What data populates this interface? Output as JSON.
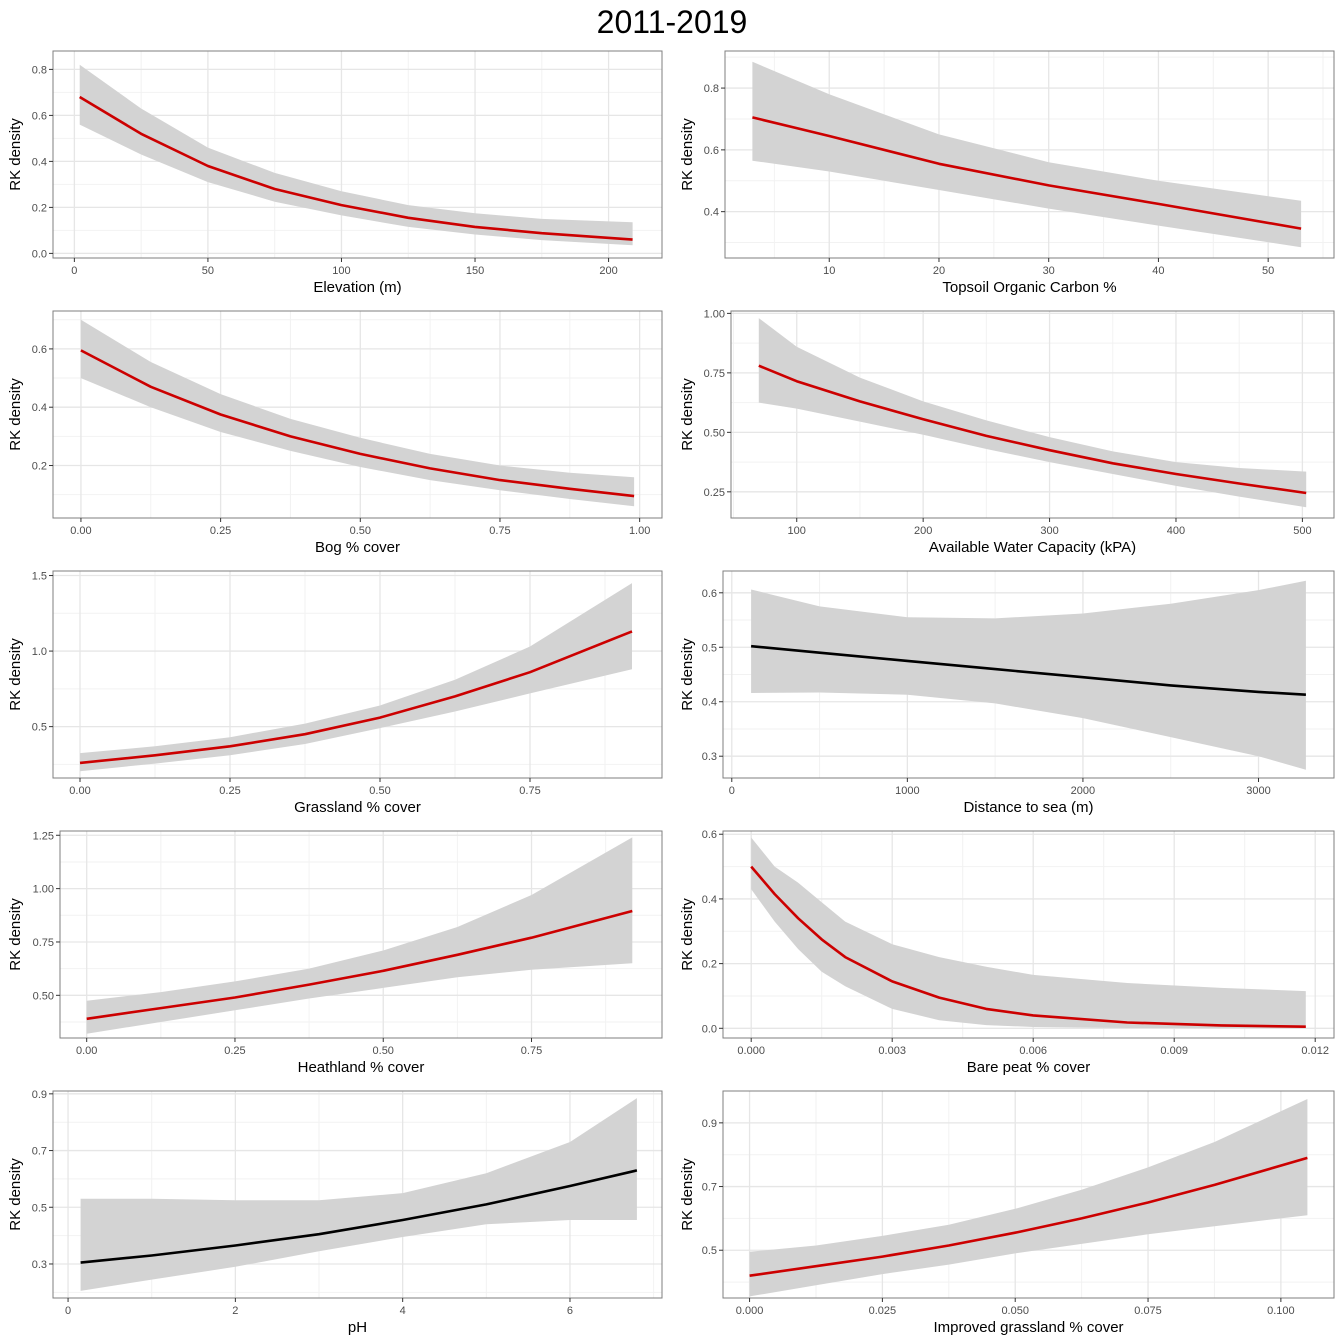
{
  "figure_title": "2011-2019",
  "colors": {
    "significant": "#cc0000",
    "non_significant": "#000000",
    "ribbon": "#d3d3d3",
    "grid_major": "#e6e6e6",
    "grid_minor": "#f2f2f2",
    "panel_border": "#7f7f7f"
  },
  "chart_data": [
    {
      "type": "line",
      "title": "",
      "xlabel": "Elevation (m)",
      "ylabel": "RK density",
      "xlim": [
        -8,
        220
      ],
      "ylim": [
        -0.02,
        0.88
      ],
      "xticks": [
        0,
        50,
        100,
        150,
        200
      ],
      "xtick_labels": [
        "0",
        "50",
        "100",
        "150",
        "200"
      ],
      "yticks": [
        0.0,
        0.2,
        0.4,
        0.6,
        0.8
      ],
      "ytick_labels": [
        "0.0",
        "0.2",
        "0.4",
        "0.6",
        "0.8"
      ],
      "line_color": "#cc0000",
      "x": [
        2,
        25,
        50,
        75,
        100,
        125,
        150,
        175,
        209
      ],
      "y": [
        0.68,
        0.52,
        0.38,
        0.28,
        0.21,
        0.155,
        0.115,
        0.088,
        0.06
      ],
      "lower": [
        0.56,
        0.43,
        0.31,
        0.225,
        0.165,
        0.115,
        0.082,
        0.058,
        0.035
      ],
      "upper": [
        0.82,
        0.63,
        0.46,
        0.35,
        0.27,
        0.21,
        0.175,
        0.15,
        0.135
      ]
    },
    {
      "type": "line",
      "title": "",
      "xlabel": "Topsoil Organic Carbon %",
      "ylabel": "RK density",
      "xlim": [
        0.5,
        56
      ],
      "ylim": [
        0.25,
        0.92
      ],
      "xticks": [
        10,
        20,
        30,
        40,
        50
      ],
      "xtick_labels": [
        "10",
        "20",
        "30",
        "40",
        "50"
      ],
      "yticks": [
        0.4,
        0.6,
        0.8
      ],
      "ytick_labels": [
        "0.4",
        "0.6",
        "0.8"
      ],
      "line_color": "#cc0000",
      "x": [
        3,
        10,
        20,
        30,
        40,
        53
      ],
      "y": [
        0.705,
        0.645,
        0.555,
        0.485,
        0.425,
        0.345
      ],
      "lower": [
        0.565,
        0.53,
        0.47,
        0.41,
        0.355,
        0.285
      ],
      "upper": [
        0.885,
        0.78,
        0.65,
        0.56,
        0.5,
        0.435
      ]
    },
    {
      "type": "line",
      "title": "",
      "xlabel": "Bog % cover",
      "ylabel": "RK density",
      "xlim": [
        -0.05,
        1.04
      ],
      "ylim": [
        0.02,
        0.73
      ],
      "xticks": [
        0.0,
        0.25,
        0.5,
        0.75,
        1.0
      ],
      "xtick_labels": [
        "0.00",
        "0.25",
        "0.50",
        "0.75",
        "1.00"
      ],
      "yticks": [
        0.2,
        0.4,
        0.6
      ],
      "ytick_labels": [
        "0.2",
        "0.4",
        "0.6"
      ],
      "line_color": "#cc0000",
      "x": [
        0.0,
        0.125,
        0.25,
        0.375,
        0.5,
        0.625,
        0.75,
        0.875,
        0.99
      ],
      "y": [
        0.595,
        0.47,
        0.375,
        0.3,
        0.24,
        0.19,
        0.15,
        0.12,
        0.095
      ],
      "lower": [
        0.5,
        0.4,
        0.315,
        0.25,
        0.195,
        0.15,
        0.115,
        0.085,
        0.06
      ],
      "upper": [
        0.7,
        0.555,
        0.445,
        0.36,
        0.295,
        0.24,
        0.2,
        0.175,
        0.16
      ]
    },
    {
      "type": "line",
      "title": "",
      "xlabel": "Available Water Capacity (kPA)",
      "ylabel": "RK density",
      "xlim": [
        48,
        525
      ],
      "ylim": [
        0.14,
        1.01
      ],
      "xticks": [
        100,
        200,
        300,
        400,
        500
      ],
      "xtick_labels": [
        "100",
        "200",
        "300",
        "400",
        "500"
      ],
      "yticks": [
        0.25,
        0.5,
        0.75,
        1.0
      ],
      "ytick_labels": [
        "0.25",
        "0.50",
        "0.75",
        "1.00"
      ],
      "line_color": "#cc0000",
      "x": [
        70,
        100,
        150,
        200,
        250,
        300,
        350,
        400,
        450,
        503
      ],
      "y": [
        0.78,
        0.715,
        0.63,
        0.555,
        0.485,
        0.425,
        0.37,
        0.325,
        0.285,
        0.245
      ],
      "lower": [
        0.625,
        0.6,
        0.545,
        0.49,
        0.43,
        0.375,
        0.325,
        0.275,
        0.23,
        0.185
      ],
      "upper": [
        0.98,
        0.86,
        0.73,
        0.63,
        0.55,
        0.48,
        0.42,
        0.375,
        0.35,
        0.335
      ]
    },
    {
      "type": "line",
      "title": "",
      "xlabel": "Grassland % cover",
      "ylabel": "RK density",
      "xlim": [
        -0.045,
        0.97
      ],
      "ylim": [
        0.16,
        1.53
      ],
      "xticks": [
        0.0,
        0.25,
        0.5,
        0.75
      ],
      "xtick_labels": [
        "0.00",
        "0.25",
        "0.50",
        "0.75"
      ],
      "yticks": [
        0.5,
        1.0,
        1.5
      ],
      "ytick_labels": [
        "0.5",
        "1.0",
        "1.5"
      ],
      "line_color": "#cc0000",
      "x": [
        0.0,
        0.125,
        0.25,
        0.375,
        0.5,
        0.625,
        0.75,
        0.92
      ],
      "y": [
        0.26,
        0.31,
        0.37,
        0.45,
        0.56,
        0.7,
        0.86,
        1.13
      ],
      "lower": [
        0.205,
        0.255,
        0.31,
        0.385,
        0.49,
        0.6,
        0.72,
        0.88
      ],
      "upper": [
        0.325,
        0.37,
        0.43,
        0.52,
        0.64,
        0.81,
        1.03,
        1.45
      ]
    },
    {
      "type": "line",
      "title": "",
      "xlabel": "Distance to sea (m)",
      "ylabel": "RK density",
      "xlim": [
        -50,
        3430
      ],
      "ylim": [
        0.26,
        0.64
      ],
      "xticks": [
        0,
        1000,
        2000,
        3000
      ],
      "xtick_labels": [
        "0",
        "1000",
        "2000",
        "3000"
      ],
      "yticks": [
        0.3,
        0.4,
        0.5,
        0.6
      ],
      "ytick_labels": [
        "0.3",
        "0.4",
        "0.5",
        "0.6"
      ],
      "line_color": "#000000",
      "x": [
        110,
        500,
        1000,
        1500,
        2000,
        2500,
        3000,
        3270
      ],
      "y": [
        0.502,
        0.49,
        0.475,
        0.46,
        0.445,
        0.43,
        0.418,
        0.413
      ],
      "lower": [
        0.416,
        0.417,
        0.413,
        0.397,
        0.37,
        0.335,
        0.3,
        0.275
      ],
      "upper": [
        0.606,
        0.575,
        0.555,
        0.553,
        0.562,
        0.58,
        0.605,
        0.622
      ]
    },
    {
      "type": "line",
      "title": "",
      "xlabel": "Heathland % cover",
      "ylabel": "RK density",
      "xlim": [
        -0.045,
        0.97
      ],
      "ylim": [
        0.3,
        1.27
      ],
      "xticks": [
        0.0,
        0.25,
        0.5,
        0.75
      ],
      "xtick_labels": [
        "0.00",
        "0.25",
        "0.50",
        "0.75"
      ],
      "yticks": [
        0.5,
        0.75,
        1.0,
        1.25
      ],
      "ytick_labels": [
        "0.50",
        "0.75",
        "1.00",
        "1.25"
      ],
      "line_color": "#cc0000",
      "x": [
        0.0,
        0.125,
        0.25,
        0.375,
        0.5,
        0.625,
        0.75,
        0.92
      ],
      "y": [
        0.39,
        0.44,
        0.49,
        0.55,
        0.615,
        0.69,
        0.77,
        0.895
      ],
      "lower": [
        0.32,
        0.375,
        0.43,
        0.485,
        0.535,
        0.585,
        0.62,
        0.65
      ],
      "upper": [
        0.475,
        0.515,
        0.565,
        0.625,
        0.71,
        0.82,
        0.97,
        1.24
      ]
    },
    {
      "type": "line",
      "title": "",
      "xlabel": "Bare peat % cover",
      "ylabel": "RK density",
      "xlim": [
        -0.0006,
        0.0124
      ],
      "ylim": [
        -0.03,
        0.61
      ],
      "xticks": [
        0.0,
        0.003,
        0.006,
        0.009,
        0.012
      ],
      "xtick_labels": [
        "0.000",
        "0.003",
        "0.006",
        "0.009",
        "0.012"
      ],
      "yticks": [
        0.0,
        0.2,
        0.4,
        0.6
      ],
      "ytick_labels": [
        "0.0",
        "0.2",
        "0.4",
        "0.6"
      ],
      "line_color": "#cc0000",
      "x": [
        0.0,
        0.0005,
        0.001,
        0.0015,
        0.002,
        0.003,
        0.004,
        0.005,
        0.006,
        0.008,
        0.01,
        0.0118
      ],
      "y": [
        0.5,
        0.415,
        0.34,
        0.275,
        0.22,
        0.145,
        0.095,
        0.06,
        0.04,
        0.018,
        0.009,
        0.005
      ],
      "lower": [
        0.43,
        0.33,
        0.245,
        0.175,
        0.13,
        0.06,
        0.025,
        0.01,
        0.004,
        0.001,
        0.0,
        0.0
      ],
      "upper": [
        0.59,
        0.5,
        0.45,
        0.39,
        0.33,
        0.26,
        0.22,
        0.19,
        0.165,
        0.14,
        0.125,
        0.115
      ]
    },
    {
      "type": "line",
      "title": "",
      "xlabel": "pH",
      "ylabel": "RK density",
      "xlim": [
        -0.18,
        7.1
      ],
      "ylim": [
        0.18,
        0.91
      ],
      "xticks": [
        0,
        2,
        4,
        6
      ],
      "xtick_labels": [
        "0",
        "2",
        "4",
        "6"
      ],
      "yticks": [
        0.3,
        0.5,
        0.7,
        0.9
      ],
      "ytick_labels": [
        "0.3",
        "0.5",
        "0.7",
        "0.9"
      ],
      "line_color": "#000000",
      "x": [
        0.15,
        1,
        2,
        3,
        4,
        5,
        6,
        6.8
      ],
      "y": [
        0.305,
        0.33,
        0.365,
        0.405,
        0.455,
        0.51,
        0.575,
        0.63
      ],
      "lower": [
        0.205,
        0.245,
        0.29,
        0.345,
        0.395,
        0.44,
        0.455,
        0.455
      ],
      "upper": [
        0.53,
        0.53,
        0.525,
        0.525,
        0.55,
        0.62,
        0.73,
        0.885
      ]
    },
    {
      "type": "line",
      "title": "",
      "xlabel": "Improved grassland % cover",
      "ylabel": "RK density",
      "xlim": [
        -0.005,
        0.11
      ],
      "ylim": [
        0.35,
        1.0
      ],
      "xticks": [
        0.0,
        0.025,
        0.05,
        0.075,
        0.1
      ],
      "xtick_labels": [
        "0.000",
        "0.025",
        "0.050",
        "0.075",
        "0.100"
      ],
      "yticks": [
        0.5,
        0.7,
        0.9
      ],
      "ytick_labels": [
        "0.5",
        "0.7",
        "0.9"
      ],
      "line_color": "#cc0000",
      "x": [
        0.0,
        0.0125,
        0.025,
        0.0375,
        0.05,
        0.0625,
        0.075,
        0.0875,
        0.105
      ],
      "y": [
        0.42,
        0.45,
        0.48,
        0.515,
        0.555,
        0.6,
        0.65,
        0.705,
        0.79
      ],
      "lower": [
        0.355,
        0.39,
        0.425,
        0.455,
        0.49,
        0.52,
        0.55,
        0.575,
        0.61
      ],
      "upper": [
        0.495,
        0.515,
        0.545,
        0.58,
        0.63,
        0.69,
        0.76,
        0.84,
        0.975
      ]
    }
  ]
}
